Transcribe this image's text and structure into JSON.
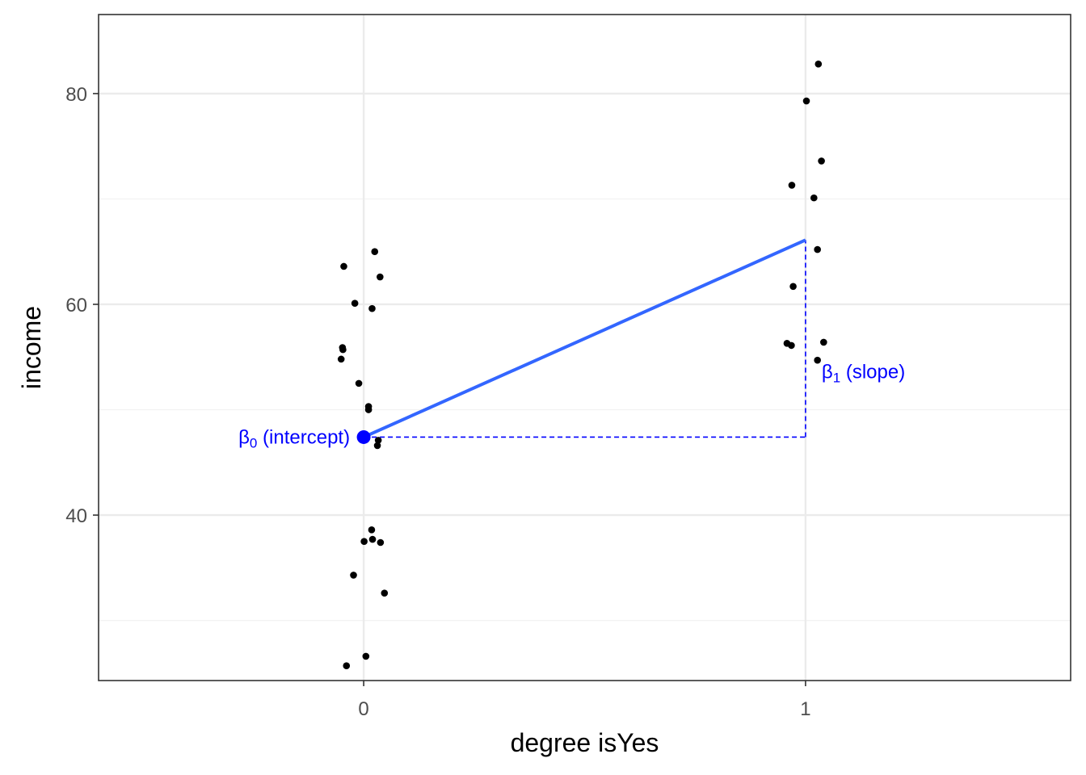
{
  "chart_data": {
    "type": "scatter",
    "title": "",
    "xlabel": "degree isYes",
    "ylabel": "income",
    "xlim": [
      -0.6,
      1.6
    ],
    "ylim": [
      24.3,
      87.5
    ],
    "x_ticks": [
      0,
      1
    ],
    "x_tick_labels": [
      "0",
      "1"
    ],
    "y_ticks": [
      40,
      60,
      80
    ],
    "y_tick_labels": [
      "40",
      "60",
      "80"
    ],
    "y_minor_ticks": [
      30,
      50,
      70
    ],
    "grid": true,
    "theme": "bw",
    "points": [
      {
        "x": -0.045,
        "y": 63.6
      },
      {
        "x": 0.025,
        "y": 65.0
      },
      {
        "x": 0.037,
        "y": 62.6
      },
      {
        "x": -0.02,
        "y": 60.1
      },
      {
        "x": 0.019,
        "y": 59.6
      },
      {
        "x": -0.048,
        "y": 55.9
      },
      {
        "x": -0.047,
        "y": 55.7
      },
      {
        "x": -0.051,
        "y": 54.8
      },
      {
        "x": -0.011,
        "y": 52.5
      },
      {
        "x": 0.011,
        "y": 50.3
      },
      {
        "x": 0.011,
        "y": 50.0
      },
      {
        "x": 0.033,
        "y": 47.1
      },
      {
        "x": 0.031,
        "y": 46.6
      },
      {
        "x": 0.018,
        "y": 38.6
      },
      {
        "x": 0.02,
        "y": 37.7
      },
      {
        "x": 0.001,
        "y": 37.5
      },
      {
        "x": 0.038,
        "y": 37.4
      },
      {
        "x": -0.023,
        "y": 34.3
      },
      {
        "x": 0.047,
        "y": 32.6
      },
      {
        "x": 0.005,
        "y": 26.6
      },
      {
        "x": -0.039,
        "y": 25.7
      },
      {
        "x": 1.029,
        "y": 82.8
      },
      {
        "x": 1.002,
        "y": 79.3
      },
      {
        "x": 1.036,
        "y": 73.6
      },
      {
        "x": 0.969,
        "y": 71.3
      },
      {
        "x": 1.019,
        "y": 70.1
      },
      {
        "x": 1.027,
        "y": 65.2
      },
      {
        "x": 0.972,
        "y": 61.7
      },
      {
        "x": 0.958,
        "y": 56.3
      },
      {
        "x": 0.968,
        "y": 56.1
      },
      {
        "x": 1.041,
        "y": 56.4
      },
      {
        "x": 1.027,
        "y": 54.7
      }
    ],
    "fit_line": {
      "x": [
        0,
        1
      ],
      "y": [
        47.4,
        66.1
      ],
      "color": "#3366ff"
    },
    "annotation_color": "#0000ff",
    "intercept_annotation": {
      "x": 0,
      "y": 47.4,
      "symbol": "β",
      "subscript": "0",
      "text": " (intercept)"
    },
    "slope_annotation": {
      "x": 1,
      "y": 66.1,
      "symbol": "β",
      "subscript": "1",
      "text": " (slope)"
    }
  }
}
